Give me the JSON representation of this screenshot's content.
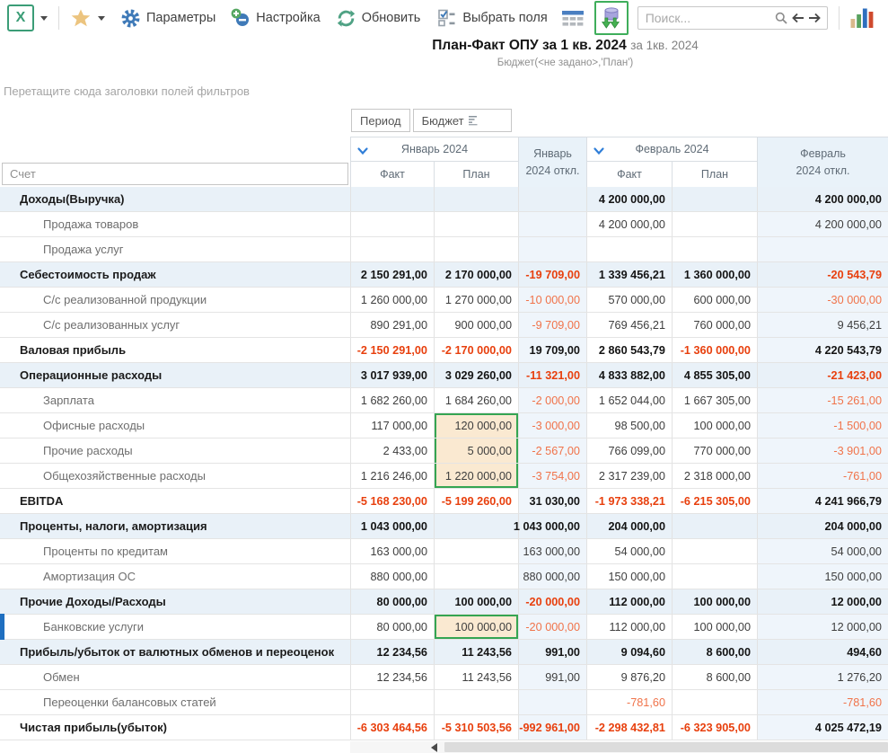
{
  "toolbar": {
    "params_label": "Параметры",
    "settings_label": "Настройка",
    "refresh_label": "Обновить",
    "choose_fields_label": "Выбрать поля",
    "search_placeholder": "Поиск..."
  },
  "title": {
    "main": "План-Факт ОПУ за 1 кв. 2024",
    "period_suffix": "за 1кв. 2024",
    "subtitle": "Бюджет(<не задано>,'План')"
  },
  "filter_hint": "Перетащите сюда заголовки полей фильтров",
  "pivot": {
    "fields": [
      {
        "label": "Период"
      },
      {
        "label": "Бюджет"
      }
    ]
  },
  "columns": {
    "row_field": "Счет",
    "group1": "Январь 2024",
    "group2": "Февраль 2024",
    "fact": "Факт",
    "plan": "План",
    "dev1_line1": "Январь",
    "dev1_line2": "2024 откл.",
    "dev2_line1": "Февраль",
    "dev2_line2": "2024 откл."
  },
  "table": {
    "selection": {
      "block": {
        "col": 1,
        "rows": [
          9,
          10,
          11
        ]
      },
      "cell": {
        "col": 1,
        "row": 17
      }
    },
    "rows": [
      {
        "label": "Доходы(Выручка)",
        "type": "group",
        "cells": [
          "",
          "",
          "",
          "4 200 000,00",
          "",
          "4 200 000,00"
        ]
      },
      {
        "label": "Продажа товаров",
        "type": "child",
        "cells": [
          "",
          "",
          "",
          "4 200 000,00",
          "",
          "4 200 000,00"
        ]
      },
      {
        "label": "Продажа услуг",
        "type": "child",
        "cells": [
          "",
          "",
          "",
          "",
          "",
          ""
        ]
      },
      {
        "label": "Себестоимость продаж",
        "type": "group",
        "cells": [
          "2 150 291,00",
          "2 170 000,00",
          "-19 709,00",
          "1 339 456,21",
          "1 360 000,00",
          "-20 543,79"
        ]
      },
      {
        "label": "С/с реализованной продукции",
        "type": "child",
        "cells": [
          "1 260 000,00",
          "1 270 000,00",
          "-10 000,00",
          "570 000,00",
          "600 000,00",
          "-30 000,00"
        ]
      },
      {
        "label": "С/с реализованных услуг",
        "type": "child",
        "cells": [
          "890 291,00",
          "900 000,00",
          "-9 709,00",
          "769 456,21",
          "760 000,00",
          "9 456,21"
        ]
      },
      {
        "label": "Валовая прибыль",
        "type": "formula",
        "cells": [
          "-2 150 291,00",
          "-2 170 000,00",
          "19 709,00",
          "2 860 543,79",
          "-1 360 000,00",
          "4 220 543,79"
        ]
      },
      {
        "label": "Операционные расходы",
        "type": "group",
        "cells": [
          "3 017 939,00",
          "3 029 260,00",
          "-11 321,00",
          "4 833 882,00",
          "4 855 305,00",
          "-21 423,00"
        ]
      },
      {
        "label": "Зарплата",
        "type": "child",
        "cells": [
          "1 682 260,00",
          "1 684 260,00",
          "-2 000,00",
          "1 652 044,00",
          "1 667 305,00",
          "-15 261,00"
        ]
      },
      {
        "label": "Офисные расходы",
        "type": "child",
        "cells": [
          "117 000,00",
          "120 000,00",
          "-3 000,00",
          "98 500,00",
          "100 000,00",
          "-1 500,00"
        ]
      },
      {
        "label": "Прочие расходы",
        "type": "child",
        "cells": [
          "2 433,00",
          "5 000,00",
          "-2 567,00",
          "766 099,00",
          "770 000,00",
          "-3 901,00"
        ]
      },
      {
        "label": "Общехозяйственные расходы",
        "type": "child",
        "cells": [
          "1 216 246,00",
          "1 220 000,00",
          "-3 754,00",
          "2 317 239,00",
          "2 318 000,00",
          "-761,00"
        ]
      },
      {
        "label": "EBITDA",
        "type": "formula",
        "cells": [
          "-5 168 230,00",
          "-5 199 260,00",
          "31 030,00",
          "-1 973 338,21",
          "-6 215 305,00",
          "4 241 966,79"
        ]
      },
      {
        "label": "Проценты, налоги, амортизация",
        "type": "group",
        "cells": [
          "1 043 000,00",
          "",
          "1 043 000,00",
          "204 000,00",
          "",
          "204 000,00"
        ]
      },
      {
        "label": "Проценты по кредитам",
        "type": "child",
        "cells": [
          "163 000,00",
          "",
          "163 000,00",
          "54 000,00",
          "",
          "54 000,00"
        ]
      },
      {
        "label": "Амортизация ОС",
        "type": "child",
        "cells": [
          "880 000,00",
          "",
          "880 000,00",
          "150 000,00",
          "",
          "150 000,00"
        ]
      },
      {
        "label": "Прочие Доходы/Расходы",
        "type": "group",
        "cells": [
          "80 000,00",
          "100 000,00",
          "-20 000,00",
          "112 000,00",
          "100 000,00",
          "12 000,00"
        ]
      },
      {
        "label": "Банковские услуги",
        "type": "child",
        "selected_row": true,
        "cells": [
          "80 000,00",
          "100 000,00",
          "-20 000,00",
          "112 000,00",
          "100 000,00",
          "12 000,00"
        ]
      },
      {
        "label": "Прибыль/убыток от валютных обменов и переоценок",
        "type": "group",
        "cells": [
          "12 234,56",
          "11 243,56",
          "991,00",
          "9 094,60",
          "8 600,00",
          "494,60"
        ]
      },
      {
        "label": "Обмен",
        "type": "child",
        "cells": [
          "12 234,56",
          "11 243,56",
          "991,00",
          "9 876,20",
          "8 600,00",
          "1 276,20"
        ]
      },
      {
        "label": "Переоценки балансовых статей",
        "type": "child",
        "cells": [
          "",
          "",
          "",
          "-781,60",
          "",
          "-781,60"
        ]
      },
      {
        "label": "Чистая прибыль(убыток)",
        "type": "formula",
        "cells": [
          "-6 303 464,56",
          "-5 310 503,56",
          "-992 961,00",
          "-2 298 432,81",
          "-6 323 905,00",
          "4 025 472,19"
        ]
      }
    ]
  },
  "colors": {
    "accent_green": "#35a552",
    "selection_fill": "#fae9d1",
    "negative_bold": "#e8400e",
    "negative_light": "#f0734a",
    "group_row_bg": "#e9f1f8",
    "deviation_col_bg": "#eff5fb",
    "current_row_marker": "#1f6fc0"
  }
}
